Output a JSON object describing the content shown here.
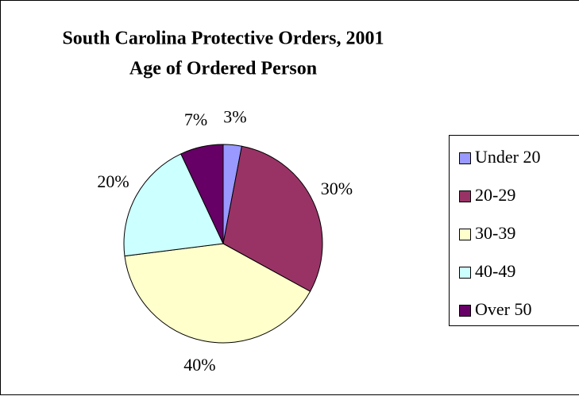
{
  "chart_data": {
    "type": "pie",
    "title": "South Carolina Protective Orders, 2001",
    "subtitle": "Age of Ordered Person",
    "categories": [
      "Under 20",
      "20-29",
      "30-39",
      "40-49",
      "Over 50"
    ],
    "values": [
      3,
      30,
      40,
      20,
      7
    ],
    "value_labels": [
      "3%",
      "30%",
      "40%",
      "20%",
      "7%"
    ],
    "colors": [
      "#9999ff",
      "#993366",
      "#ffffcc",
      "#ccffff",
      "#660066"
    ],
    "legend": "right"
  }
}
